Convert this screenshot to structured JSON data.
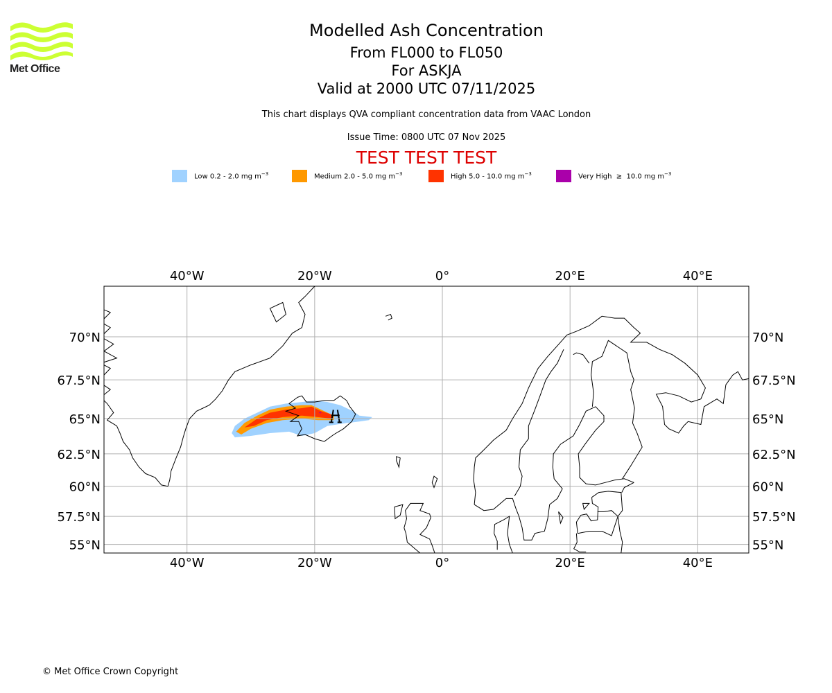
{
  "header": {
    "title": "Modelled Ash Concentration",
    "level_range": "From FL000 to FL050",
    "volcano": "For ASKJA",
    "valid_time": "Valid at 2000 UTC 07/11/2025",
    "description": "This chart displays QVA compliant concentration data from VAAC London",
    "issue_time": "Issue Time: 0800 UTC 07 Nov 2025",
    "test_banner": "TEST TEST TEST",
    "test_color": "#dd0000"
  },
  "logo": {
    "name": "Met Office",
    "icon": "met-office-waves-logo",
    "color": "#ccff33"
  },
  "legend": [
    {
      "label": "Low 0.2 - 2.0 mg m",
      "sup": "−3",
      "color": "#a0d2ff"
    },
    {
      "label": "Medium 2.0 - 5.0 mg m",
      "sup": "−3",
      "color": "#ff9900"
    },
    {
      "label": "High 5.0 - 10.0 mg m",
      "sup": "−3",
      "color": "#ff3300"
    },
    {
      "label": "Very High  ≥  10.0 mg m",
      "sup": "−3",
      "color": "#aa00aa"
    }
  ],
  "map": {
    "projection": "mercator",
    "lon_range": [
      -53,
      48
    ],
    "lat_range": [
      54.2,
      72.6
    ],
    "lon_ticks": [
      {
        "value": -40,
        "label": "40°W"
      },
      {
        "value": -20,
        "label": "20°W"
      },
      {
        "value": 0,
        "label": "0°"
      },
      {
        "value": 20,
        "label": "20°E"
      },
      {
        "value": 40,
        "label": "40°E"
      }
    ],
    "lat_ticks": [
      {
        "value": 70,
        "label": "70°N"
      },
      {
        "value": 67.5,
        "label": "67.5°N"
      },
      {
        "value": 65,
        "label": "65°N"
      },
      {
        "value": 62.5,
        "label": "62.5°N"
      },
      {
        "value": 60,
        "label": "60°N"
      },
      {
        "value": 57.5,
        "label": "57.5°N"
      },
      {
        "value": 55,
        "label": "55°N"
      }
    ],
    "grid": true,
    "volcano_location": {
      "name": "ASKJA",
      "lon": -16.75,
      "lat": 65.03
    }
  },
  "footer": {
    "copyright": "© Met Office Crown Copyright"
  }
}
